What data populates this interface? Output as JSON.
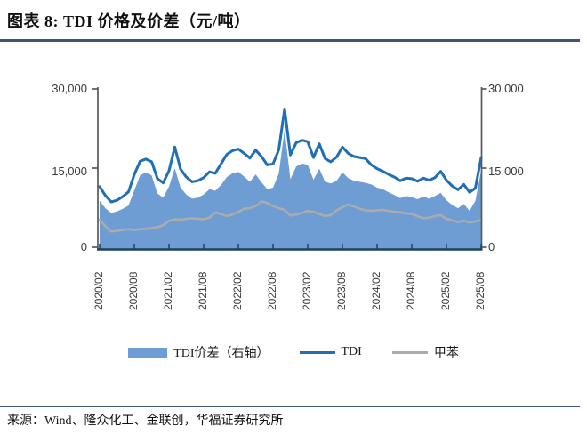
{
  "page": {
    "title": "图表 8: TDI 价格及价差（元/吨）",
    "source": "来源：Wind、隆众化工、金联创，华福证券研究所"
  },
  "colors": {
    "divider": "#3E5770",
    "axis_spine": "#595959",
    "axis_bottom": "#1F4063",
    "tick_label": "#3a3a3a",
    "area_fill": "#6D9DD3",
    "tdi_line": "#1F6FB5",
    "toluene_line": "#ABABAB"
  },
  "chart_data": {
    "type": "area",
    "title": "TDI 价格及价差（元/吨）",
    "xlabel": "",
    "ylabel_left": "元/吨",
    "ylabel_right": "元/吨",
    "ylim_left": [
      0,
      30000
    ],
    "ylim_right": [
      0,
      30000
    ],
    "y_max": 30000,
    "grid": false,
    "legend_position": "bottom",
    "y_axis_left": {
      "labels": [
        "30,000",
        "15,000",
        "0"
      ]
    },
    "y_axis_right": {
      "labels": [
        "30,000",
        "15,000",
        "0"
      ]
    },
    "x_tick_labels": [
      "2020/02",
      "2020/08",
      "2021/02",
      "2021/08",
      "2022/02",
      "2022/08",
      "2023/02",
      "2023/08",
      "2024/02",
      "2024/08",
      "2025/02",
      "2025/08"
    ],
    "x": [
      "2020/02",
      "2020/03",
      "2020/04",
      "2020/05",
      "2020/06",
      "2020/07",
      "2020/08",
      "2020/09",
      "2020/10",
      "2020/11",
      "2020/12",
      "2021/01",
      "2021/02",
      "2021/03",
      "2021/04",
      "2021/05",
      "2021/06",
      "2021/07",
      "2021/08",
      "2021/09",
      "2021/10",
      "2021/11",
      "2021/12",
      "2022/01",
      "2022/02",
      "2022/03",
      "2022/04",
      "2022/05",
      "2022/06",
      "2022/07",
      "2022/08",
      "2022/09",
      "2022/10",
      "2022/11",
      "2022/12",
      "2023/01",
      "2023/02",
      "2023/03",
      "2023/04",
      "2023/05",
      "2023/06",
      "2023/07",
      "2023/08",
      "2023/09",
      "2023/10",
      "2023/11",
      "2023/12",
      "2024/01",
      "2024/02",
      "2024/03",
      "2024/04",
      "2024/05",
      "2024/06",
      "2024/07",
      "2024/08",
      "2024/09",
      "2024/10",
      "2024/11",
      "2024/12",
      "2025/01",
      "2025/02",
      "2025/03",
      "2025/04",
      "2025/05",
      "2025/06",
      "2025/07",
      "2025/08"
    ],
    "series": [
      {
        "name": "TDI价差（右轴）",
        "type": "area",
        "axis": "right",
        "color": "#6D9DD3",
        "values": [
          8800,
          7400,
          6500,
          6800,
          7300,
          7900,
          10800,
          13600,
          14200,
          13600,
          10200,
          9400,
          11500,
          15000,
          11300,
          10000,
          9200,
          9400,
          10000,
          11000,
          10700,
          11800,
          13300,
          14000,
          14300,
          13400,
          12400,
          13800,
          12300,
          11000,
          11300,
          14000,
          22300,
          12900,
          15300,
          15900,
          15600,
          12800,
          14900,
          12400,
          12100,
          12600,
          14200,
          13100,
          12600,
          12400,
          12200,
          11900,
          11300,
          11000,
          10400,
          9900,
          9300,
          9700,
          9500,
          9100,
          9600,
          9200,
          9700,
          10300,
          8900,
          8000,
          7400,
          8200,
          6900,
          8800,
          14500
        ]
      },
      {
        "name": "TDI",
        "type": "line",
        "axis": "left",
        "color": "#1F6FB5",
        "values": [
          11500,
          9800,
          8600,
          8900,
          9600,
          10500,
          13800,
          16300,
          16700,
          16200,
          13000,
          12200,
          14500,
          19000,
          14800,
          13300,
          12400,
          12600,
          13200,
          14300,
          14000,
          15800,
          17600,
          18300,
          18600,
          17800,
          16900,
          18400,
          17200,
          15600,
          15800,
          18500,
          26200,
          17500,
          19800,
          20300,
          20000,
          17000,
          19600,
          16800,
          16200,
          17100,
          19000,
          17800,
          17200,
          17000,
          16800,
          15600,
          14900,
          14400,
          13800,
          13300,
          12600,
          13100,
          13000,
          12500,
          13100,
          12700,
          13200,
          14400,
          12700,
          11600,
          10900,
          11900,
          10400,
          11200,
          17000
        ]
      },
      {
        "name": "甲苯",
        "type": "line",
        "axis": "left",
        "color": "#ABABAB",
        "values": [
          5200,
          4000,
          3000,
          3100,
          3300,
          3400,
          3300,
          3400,
          3500,
          3600,
          3800,
          4200,
          5000,
          5300,
          5200,
          5400,
          5500,
          5400,
          5300,
          5600,
          6600,
          6300,
          5900,
          6200,
          6700,
          7300,
          7400,
          7800,
          8700,
          8400,
          7800,
          7400,
          7100,
          6000,
          6200,
          6500,
          6900,
          6700,
          6300,
          5900,
          6100,
          7000,
          7600,
          8100,
          7700,
          7300,
          7000,
          6900,
          7000,
          7100,
          6900,
          6700,
          6600,
          6400,
          6300,
          5900,
          5500,
          5600,
          5900,
          6100,
          5400,
          5100,
          4800,
          5000,
          4700,
          4900,
          5200
        ]
      }
    ]
  }
}
